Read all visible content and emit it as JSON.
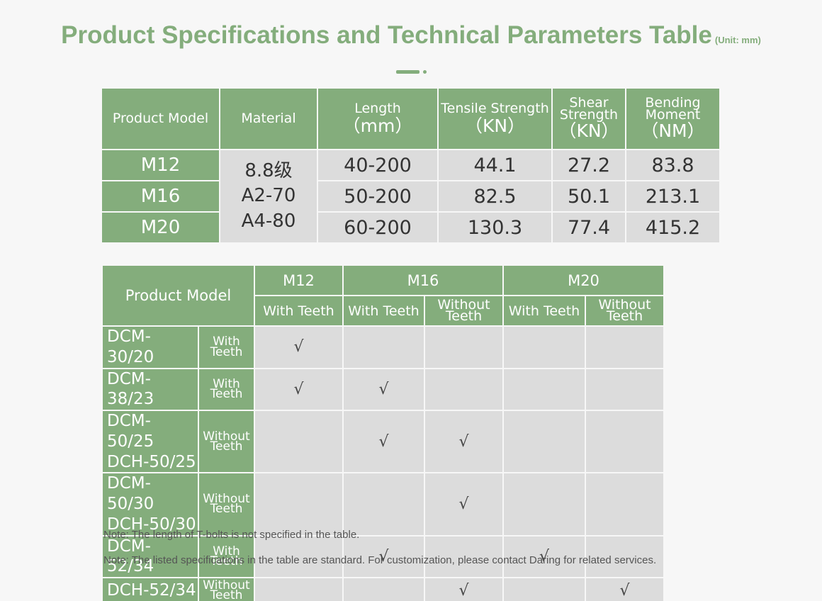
{
  "title": "Product Specifications and Technical Parameters Table",
  "unit": "(Unit: mm)",
  "colors": {
    "accent": "#84ad7c",
    "cell": "#dcdcdc",
    "background": "#f7f7f7"
  },
  "spec": {
    "headers": {
      "model": "Product Model",
      "material": "Material",
      "length_1": "Length",
      "length_2": "（mm）",
      "tensile_1": "Tensile Strength",
      "tensile_2": "（KN）",
      "shear_1": "Shear",
      "shear_2": "Strength",
      "shear_3": "（KN）",
      "bending_1": "Bending",
      "bending_2": "Moment",
      "bending_3": "（NM）"
    },
    "material_lines": [
      "8.8级",
      "A2-70",
      "A4-80"
    ],
    "rows": [
      {
        "model": "M12",
        "length": "40-200",
        "tensile": "44.1",
        "shear": "27.2",
        "bending": "83.8"
      },
      {
        "model": "M16",
        "length": "50-200",
        "tensile": "82.5",
        "shear": "50.1",
        "bending": "213.1"
      },
      {
        "model": "M20",
        "length": "60-200",
        "tensile": "130.3",
        "shear": "77.4",
        "bending": "415.2"
      }
    ]
  },
  "compat": {
    "header": "Product Model",
    "groups": [
      "M12",
      "M16",
      "M20"
    ],
    "sub": {
      "with_teeth": "With Teeth",
      "without_1": "Without",
      "without_2": "Teeth"
    },
    "check": "√",
    "rows": [
      {
        "device": [
          "DCM-30/20"
        ],
        "type": [
          "With",
          "Teeth"
        ]
      },
      {
        "device": [
          "DCM-38/23"
        ],
        "type": [
          "With",
          "Teeth"
        ]
      },
      {
        "device": [
          "DCM-50/25",
          "DCH-50/25"
        ],
        "type": [
          "Without",
          "Teeth"
        ]
      },
      {
        "device": [
          "DCM-50/30",
          "DCH-50/30"
        ],
        "type": [
          "Without",
          "Teeth"
        ]
      },
      {
        "device": [
          "DCM-52/34"
        ],
        "type": [
          "With",
          "Teeth"
        ]
      },
      {
        "device": [
          "DCH-52/34"
        ],
        "type": [
          "Without",
          "Teeth"
        ]
      }
    ]
  },
  "notes": [
    "Note: The length of T-bolts is not specified in the table.",
    "Note: The listed specifications in the table are standard. For customization, please contact Daring  for related services."
  ]
}
